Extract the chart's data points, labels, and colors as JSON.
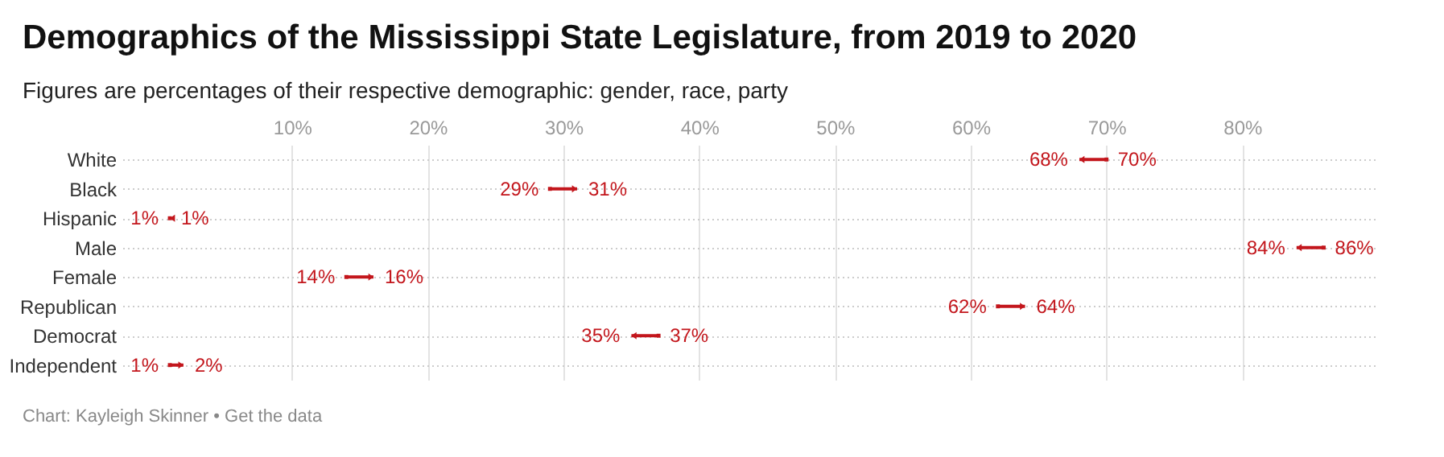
{
  "chart_data": {
    "type": "scatter",
    "title": "Demographics of the Mississippi State Legislature, from 2019 to 2020",
    "subtitle": "Figures are percentages of their respective demographic: gender, race, party",
    "categories": [
      "White",
      "Black",
      "Hispanic",
      "Male",
      "Female",
      "Republican",
      "Democrat",
      "Independent"
    ],
    "series": [
      {
        "color": "#c3161c",
        "marker": "square",
        "values": [
          70,
          29,
          1,
          86,
          14,
          62,
          37,
          1
        ],
        "value_labels": [
          "70%",
          "29%",
          "1%",
          "86%",
          "14%",
          "62%",
          "37%",
          "1%"
        ]
      },
      {
        "color": "#c3161c",
        "marker": "triangle",
        "values": [
          68,
          31,
          1,
          84,
          16,
          64,
          35,
          2
        ],
        "value_labels": [
          "68%",
          "31%",
          "1%",
          "84%",
          "16%",
          "64%",
          "35%",
          "2%"
        ]
      }
    ],
    "orientation": "horizontal",
    "xlim": [
      -2.5,
      90
    ],
    "xticks": [
      {
        "value": 10,
        "label": "10%"
      },
      {
        "value": 20,
        "label": "20%"
      },
      {
        "value": 30,
        "label": "30%"
      },
      {
        "value": 40,
        "label": "40%"
      },
      {
        "value": 50,
        "label": "50%"
      },
      {
        "value": 60,
        "label": "60%"
      },
      {
        "value": 70,
        "label": "70%"
      },
      {
        "value": 80,
        "label": "80%"
      }
    ],
    "grid": true,
    "annotations": [
      "Chart: Kayleigh Skinner • Get the data"
    ]
  }
}
